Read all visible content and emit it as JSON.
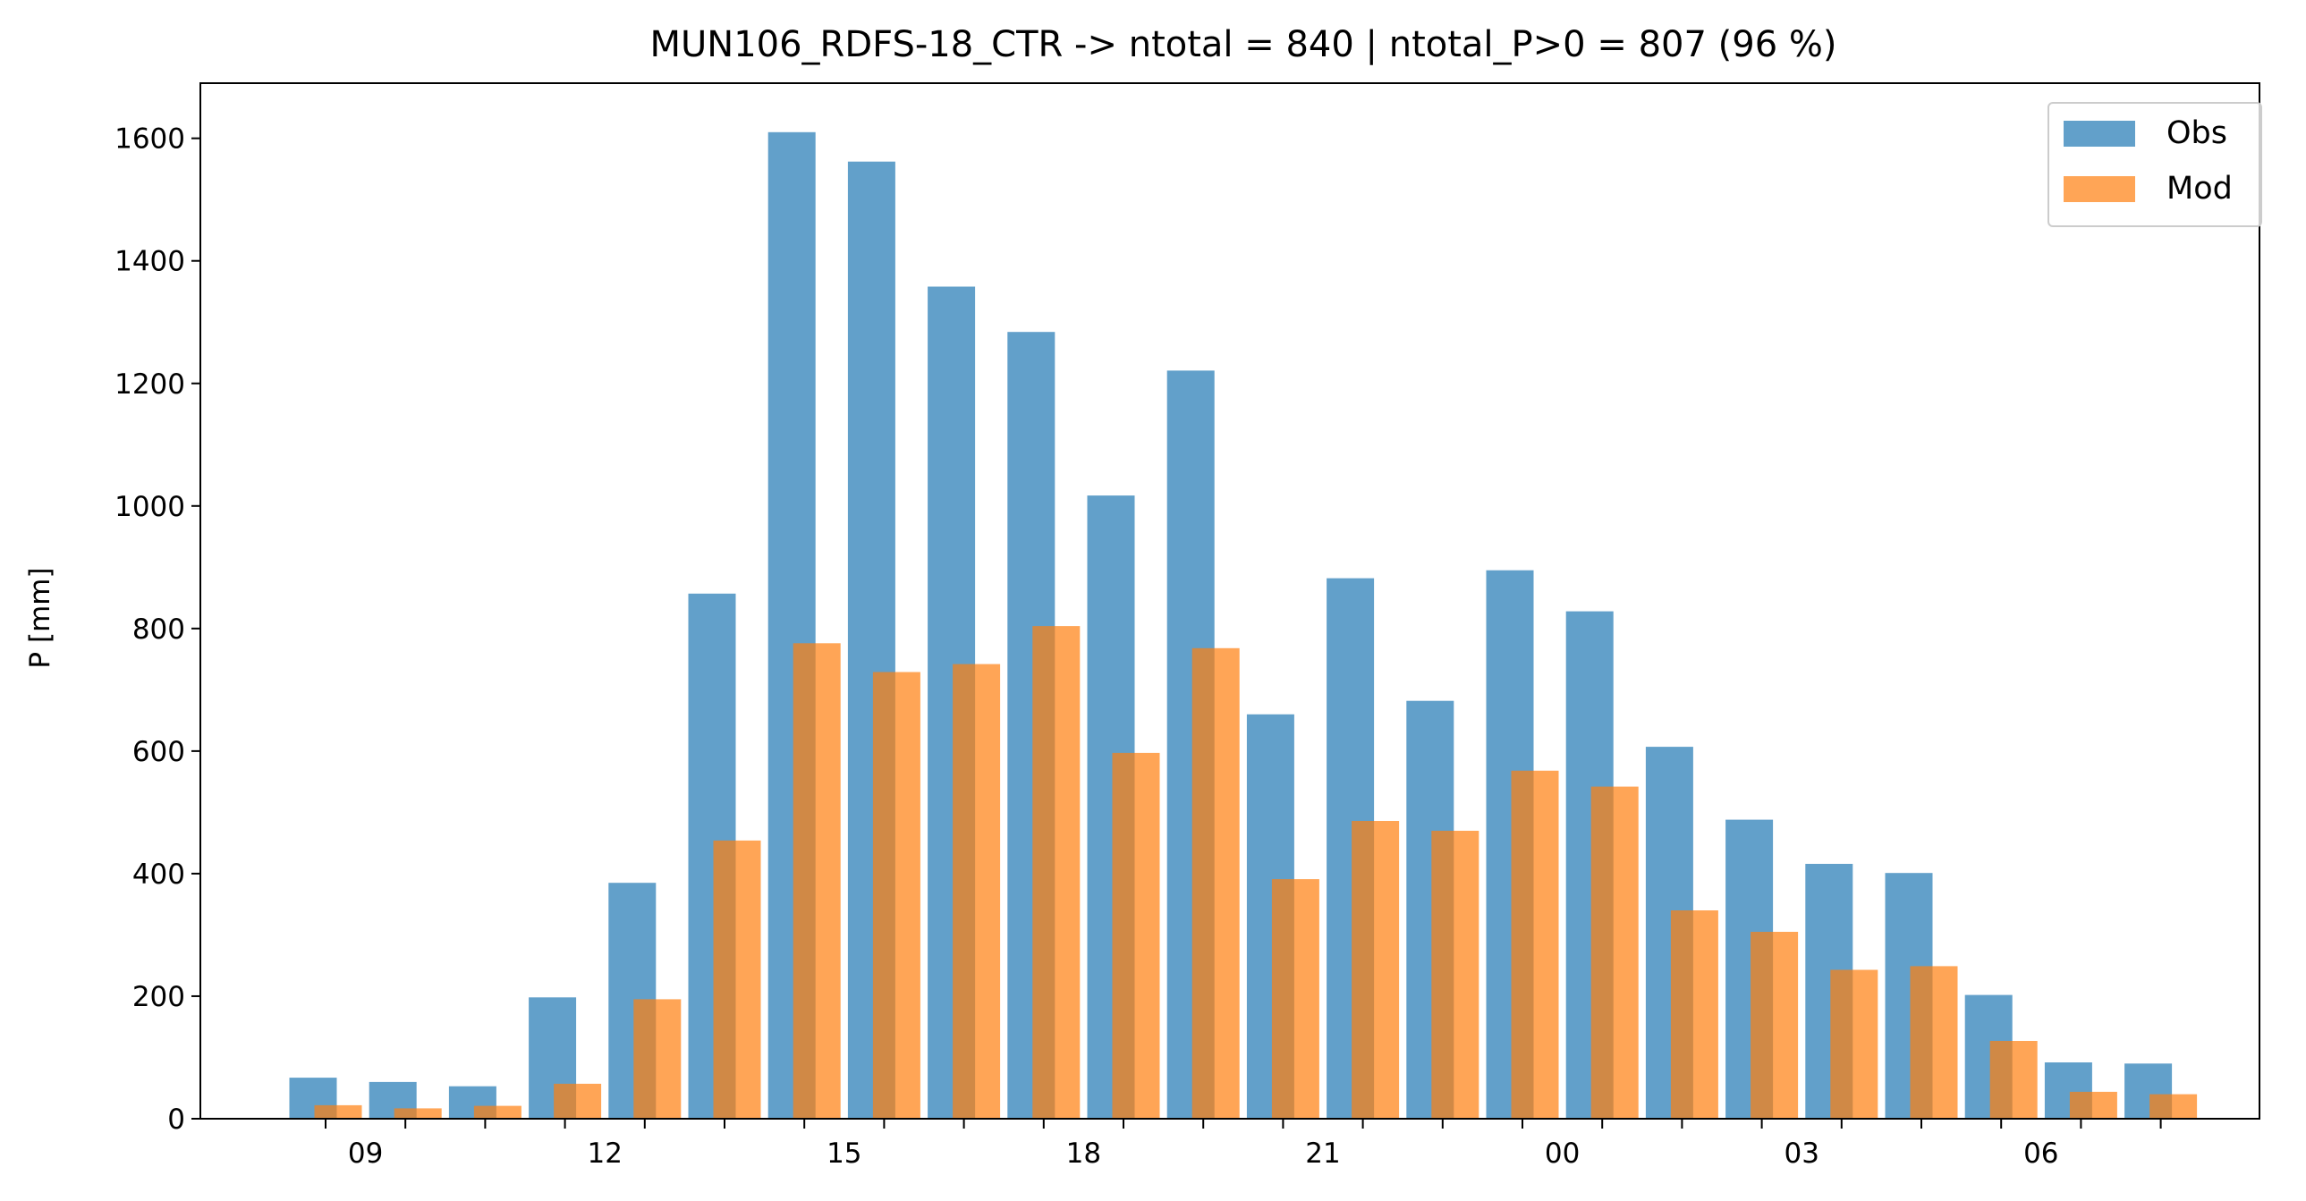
{
  "chart_data": {
    "type": "bar",
    "title": "MUN106_RDFS-18_CTR -> ntotal = 840 | ntotal_P>0 = 807 (96 %)",
    "xlabel": "",
    "ylabel": "P [mm]",
    "ylim": [
      0,
      1690
    ],
    "yticks": [
      0,
      200,
      400,
      600,
      800,
      1000,
      1200,
      1400,
      1600
    ],
    "categories": [
      "08",
      "09",
      "10",
      "11",
      "12",
      "13",
      "14",
      "15",
      "16",
      "17",
      "18",
      "19",
      "20",
      "21",
      "22",
      "23",
      "00",
      "01",
      "02",
      "03",
      "04",
      "05",
      "06",
      "07"
    ],
    "xtick_labels": [
      {
        "category_index": 1,
        "label": "09"
      },
      {
        "category_index": 4,
        "label": "12"
      },
      {
        "category_index": 7,
        "label": "15"
      },
      {
        "category_index": 10,
        "label": "18"
      },
      {
        "category_index": 13,
        "label": "21"
      },
      {
        "category_index": 16,
        "label": "00"
      },
      {
        "category_index": 19,
        "label": "03"
      },
      {
        "category_index": 22,
        "label": "06"
      }
    ],
    "series": [
      {
        "name": "Obs",
        "color": "#1f77b4",
        "opacity": 0.7,
        "values": [
          67,
          60,
          53,
          198,
          385,
          857,
          1610,
          1562,
          1358,
          1284,
          1017,
          1221,
          660,
          882,
          682,
          895,
          828,
          607,
          488,
          416,
          401,
          202,
          92,
          90
        ]
      },
      {
        "name": "Mod",
        "color": "#ff7f0e",
        "opacity": 0.7,
        "values": [
          22,
          17,
          21,
          57,
          195,
          454,
          776,
          729,
          742,
          804,
          597,
          768,
          391,
          486,
          470,
          568,
          542,
          340,
          305,
          243,
          249,
          127,
          44,
          40
        ]
      }
    ],
    "legend_position": "top-right",
    "grid": false
  }
}
